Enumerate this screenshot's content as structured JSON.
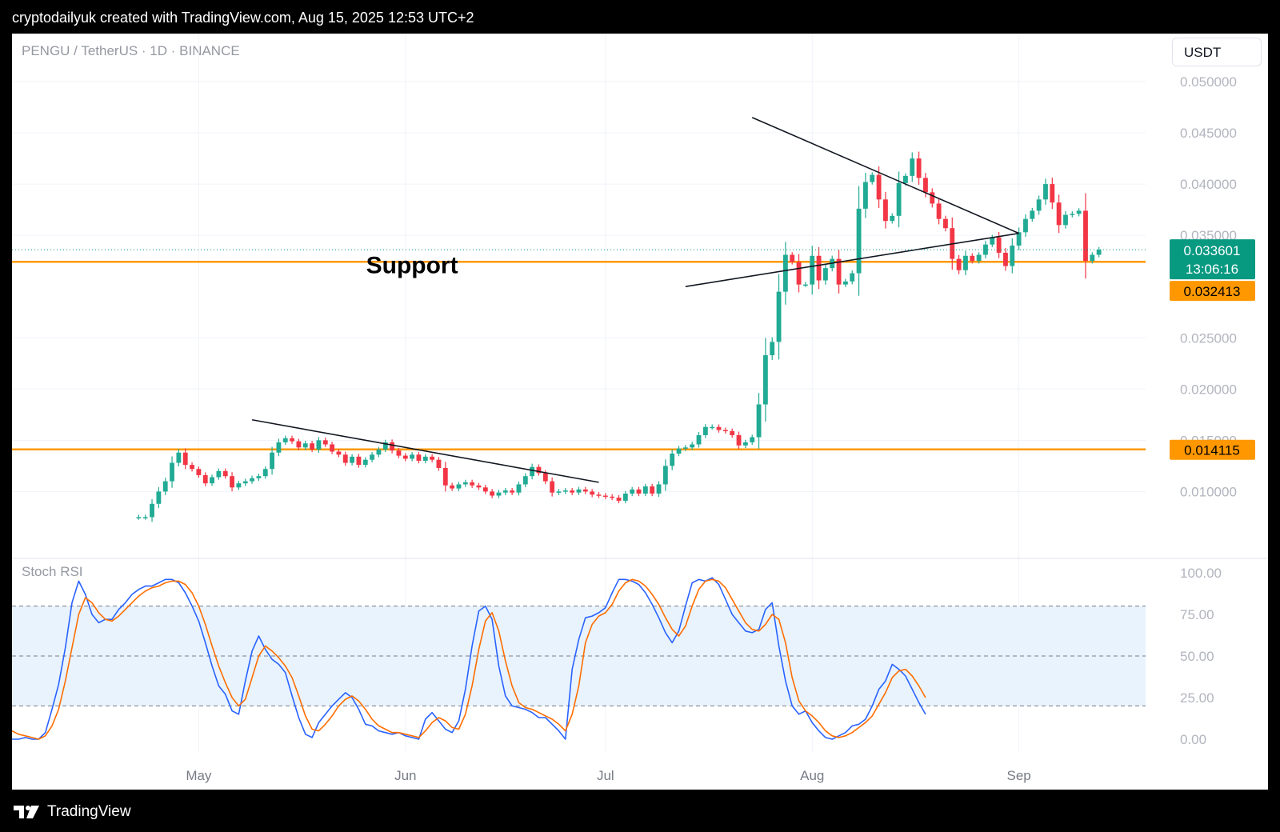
{
  "header": {
    "credit": "cryptodailyuk created with TradingView.com, Aug 15, 2025 12:53 UTC+2"
  },
  "footer": {
    "brand": "TradingView",
    "logo_icon": "tradingview-logo-icon"
  },
  "symbol": {
    "title": "PENGU / TetherUS · 1D · BINANCE"
  },
  "currency": {
    "label": "USDT"
  },
  "annotations": {
    "support_label": "Support"
  },
  "colors": {
    "up": "#22ab94",
    "down": "#f23645",
    "support": "#ff9800",
    "k_line": "#2962ff",
    "d_line": "#ff6d00",
    "band": "#e8f3fd",
    "last_price_bg": "#089981"
  },
  "chart_data": [
    {
      "type": "candlestick",
      "title": "PENGU / TetherUS · 1D · BINANCE",
      "y_axis": {
        "min": 0.0073,
        "max": 0.05,
        "ticks": [
          "0.050000",
          "0.045000",
          "0.040000",
          "0.035000",
          "0.025000",
          "0.020000",
          "0.015000",
          "0.010000"
        ]
      },
      "x_axis": {
        "labels": [
          "May",
          "Jun",
          "Jul",
          "Aug",
          "Sep"
        ],
        "label_dates": [
          "2025-05-01",
          "2025-06-01",
          "2025-07-01",
          "2025-08-01",
          "2025-09-01"
        ],
        "range": [
          "2025-04-03",
          "2025-09-20"
        ]
      },
      "start_date": "2025-04-22",
      "closes": [
        0.0075,
        0.0075,
        0.0088,
        0.01,
        0.011,
        0.0128,
        0.0138,
        0.0126,
        0.0122,
        0.0116,
        0.0108,
        0.0114,
        0.012,
        0.0115,
        0.0104,
        0.0108,
        0.011,
        0.0113,
        0.0115,
        0.0122,
        0.0138,
        0.0148,
        0.0152,
        0.0149,
        0.0143,
        0.0147,
        0.0141,
        0.015,
        0.0146,
        0.0139,
        0.0136,
        0.0128,
        0.0134,
        0.0126,
        0.0131,
        0.0136,
        0.0141,
        0.0148,
        0.014,
        0.0135,
        0.0132,
        0.0136,
        0.013,
        0.0134,
        0.0131,
        0.0123,
        0.0106,
        0.0103,
        0.0107,
        0.0109,
        0.0106,
        0.0104,
        0.01,
        0.0096,
        0.0099,
        0.0101,
        0.0099,
        0.0107,
        0.0115,
        0.0124,
        0.0118,
        0.011,
        0.0099,
        0.01,
        0.0101,
        0.0099,
        0.0102,
        0.01,
        0.0097,
        0.0096,
        0.0095,
        0.0094,
        0.0091,
        0.0098,
        0.0102,
        0.0098,
        0.0105,
        0.0098,
        0.0107,
        0.0125,
        0.0137,
        0.0142,
        0.0143,
        0.0146,
        0.0155,
        0.0163,
        0.0163,
        0.016,
        0.0159,
        0.0155,
        0.0145,
        0.0148,
        0.0153,
        0.0185,
        0.0233,
        0.0246,
        0.0295,
        0.0331,
        0.0324,
        0.0302,
        0.0302,
        0.033,
        0.0306,
        0.0318,
        0.0327,
        0.0302,
        0.0305,
        0.0313,
        0.0376,
        0.0402,
        0.0409,
        0.0385,
        0.0364,
        0.0369,
        0.0401,
        0.0408,
        0.0425,
        0.0406,
        0.0392,
        0.0381,
        0.0366,
        0.0357,
        0.0327,
        0.0316,
        0.033,
        0.0325,
        0.0331,
        0.0341,
        0.0348,
        0.0333,
        0.032,
        0.034,
        0.0353,
        0.0366,
        0.0374,
        0.0385,
        0.04,
        0.0382,
        0.036,
        0.037,
        0.0371,
        0.0374,
        0.0325,
        0.0331,
        0.0336
      ],
      "last_price": "0.033601",
      "countdown": "13:06:16",
      "support_levels": [
        {
          "value": 0.032413,
          "label": "0.032413"
        },
        {
          "value": 0.014115,
          "label": "0.014115"
        }
      ],
      "trend_lines": [
        {
          "points": [
            [
              "2025-05-09",
              0.017
            ],
            [
              "2025-06-30",
              0.0109
            ]
          ]
        },
        {
          "points": [
            [
              "2025-07-13",
              0.03
            ],
            [
              "2025-09-01",
              0.0352
            ]
          ]
        },
        {
          "points": [
            [
              "2025-07-23",
              0.0465
            ],
            [
              "2025-09-01",
              0.0352
            ]
          ]
        }
      ],
      "text_annotation": {
        "text": "Support",
        "date": "2025-06-02",
        "value": 0.0313
      }
    },
    {
      "type": "line",
      "title": "Stoch RSI",
      "y_axis": {
        "min": 0,
        "max": 100,
        "ticks": [
          "100.00",
          "75.00",
          "50.00",
          "25.00",
          "0.00"
        ]
      },
      "bands": {
        "upper": 80,
        "middle": 50,
        "lower": 20
      },
      "start_date": "2025-04-03",
      "series": [
        {
          "key": "k",
          "values": [
            0,
            0,
            1,
            0,
            0,
            4,
            18,
            33,
            55,
            82,
            95,
            87,
            75,
            70,
            72,
            72,
            78,
            82,
            87,
            90,
            92,
            92,
            94,
            96,
            96,
            94,
            88,
            80,
            71,
            58,
            44,
            32,
            27,
            17,
            15,
            35,
            53,
            62,
            54,
            48,
            45,
            40,
            26,
            13,
            3,
            1,
            10,
            15,
            20,
            24,
            28,
            25,
            18,
            9,
            8,
            5,
            4,
            3,
            4,
            2,
            1,
            0,
            12,
            16,
            11,
            6,
            4,
            11,
            30,
            56,
            77,
            80,
            72,
            44,
            26,
            20,
            19,
            18,
            16,
            13,
            13,
            9,
            5,
            0,
            42,
            60,
            73,
            74,
            76,
            79,
            88,
            96,
            96,
            95,
            93,
            88,
            81,
            73,
            64,
            58,
            65,
            80,
            94,
            96,
            95,
            97,
            93,
            84,
            75,
            70,
            65,
            64,
            66,
            78,
            82,
            56,
            35,
            20,
            15,
            17,
            10,
            5,
            1,
            0,
            2,
            4,
            8,
            9,
            12,
            20,
            30,
            35,
            45,
            42,
            38,
            30,
            22,
            15
          ]
        },
        {
          "key": "d",
          "values": [
            5,
            3,
            2,
            1,
            0,
            2,
            8,
            18,
            35,
            55,
            75,
            85,
            82,
            76,
            72,
            71,
            74,
            78,
            82,
            86,
            89,
            91,
            92,
            94,
            95,
            95,
            93,
            88,
            80,
            69,
            56,
            44,
            34,
            25,
            20,
            24,
            37,
            50,
            56,
            53,
            49,
            44,
            37,
            26,
            14,
            6,
            5,
            9,
            14,
            20,
            24,
            26,
            23,
            18,
            12,
            8,
            6,
            4,
            4,
            3,
            2,
            1,
            5,
            10,
            13,
            11,
            7,
            6,
            15,
            32,
            54,
            71,
            76,
            65,
            47,
            32,
            22,
            19,
            18,
            16,
            14,
            12,
            9,
            5,
            15,
            32,
            58,
            69,
            74,
            76,
            81,
            89,
            94,
            96,
            95,
            92,
            87,
            81,
            73,
            66,
            62,
            68,
            80,
            90,
            95,
            96,
            95,
            91,
            84,
            77,
            70,
            66,
            65,
            69,
            75,
            72,
            58,
            37,
            23,
            17,
            14,
            10,
            5,
            2,
            1,
            2,
            4,
            7,
            10,
            14,
            21,
            28,
            37,
            41,
            42,
            38,
            32,
            25
          ]
        }
      ]
    }
  ]
}
